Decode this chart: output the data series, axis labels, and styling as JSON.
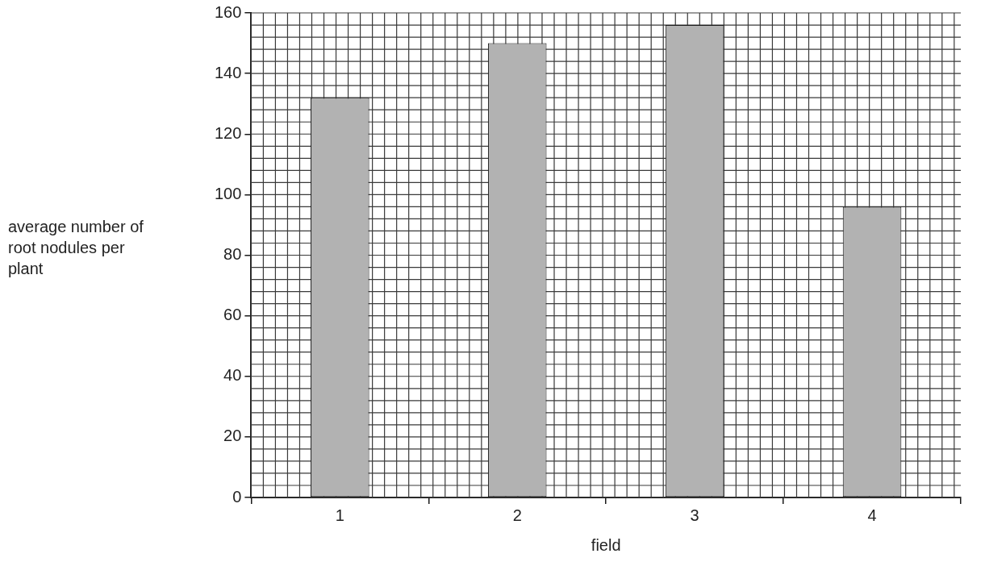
{
  "chart_data": {
    "type": "bar",
    "xlabel": "field",
    "ylabel": "average number of root nodules per plant",
    "categories": [
      "1",
      "2",
      "3",
      "4"
    ],
    "values": [
      132,
      150,
      156,
      96
    ],
    "color": "#b2b2b2",
    "ylim": [
      0,
      160
    ],
    "yticks": [
      0,
      20,
      40,
      60,
      80,
      100,
      120,
      140,
      160
    ],
    "grid": true
  }
}
